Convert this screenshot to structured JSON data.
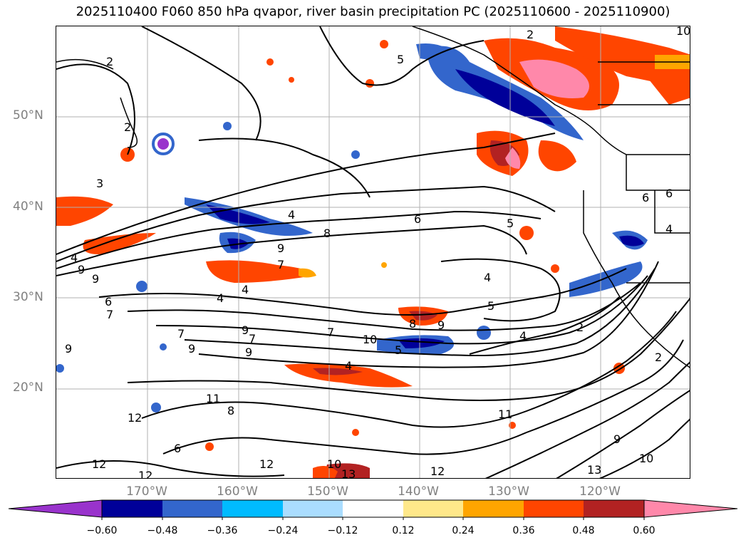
{
  "title": "2025110400 F060 850 hPa qvapor, river basin precipitation PC (2025110600 - 2025110900)",
  "lat_labels": [
    "50°N",
    "40°N",
    "30°N",
    "20°N"
  ],
  "lon_labels": [
    "170°W",
    "160°W",
    "150°W",
    "140°W",
    "130°W",
    "120°W"
  ],
  "colorbar": {
    "colors": [
      "#9933cc",
      "#000099",
      "#3366cc",
      "#00bbff",
      "#aaddff",
      "#ffffff",
      "#ffe88a",
      "#ffa500",
      "#ff4500",
      "#b22222",
      "#ff88aa"
    ],
    "ticks": [
      "−0.60",
      "−0.48",
      "−0.36",
      "−0.24",
      "−0.12",
      "0.12",
      "0.24",
      "0.36",
      "0.48",
      "0.60"
    ]
  },
  "contour_labels": [
    "2",
    "5",
    "2",
    "10",
    "2",
    "3",
    "4",
    "8",
    "9",
    "6",
    "5",
    "6",
    "4",
    "9",
    "7",
    "4",
    "9",
    "7",
    "4",
    "4",
    "8",
    "9",
    "7",
    "5",
    "4",
    "9",
    "7",
    "2",
    "7",
    "9",
    "9",
    "10",
    "5",
    "4",
    "6",
    "9",
    "11",
    "8",
    "6",
    "12",
    "12",
    "12",
    "10",
    "13",
    "12",
    "11",
    "13",
    "9",
    "10",
    "12",
    "2",
    "6",
    "4"
  ]
}
